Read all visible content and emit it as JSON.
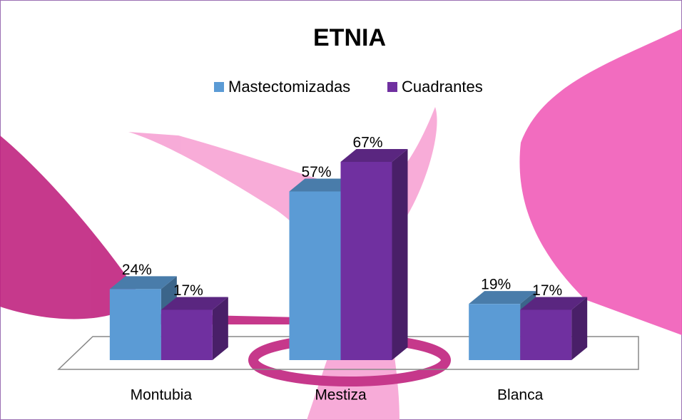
{
  "chart_data": {
    "type": "bar3d",
    "title": "ETNIA",
    "categories": [
      "Montubia",
      "Mestiza",
      "Blanca"
    ],
    "series": [
      {
        "name": "Mastectomizadas",
        "color": "#5b9bd5",
        "values": [
          24,
          57,
          19
        ],
        "value_labels": [
          "24%",
          "57%",
          "19%"
        ]
      },
      {
        "name": "Cuadrantes",
        "color": "#7030a0",
        "values": [
          17,
          67,
          17
        ],
        "value_labels": [
          "17%",
          "67%",
          "17%"
        ]
      }
    ],
    "legend": "top"
  }
}
